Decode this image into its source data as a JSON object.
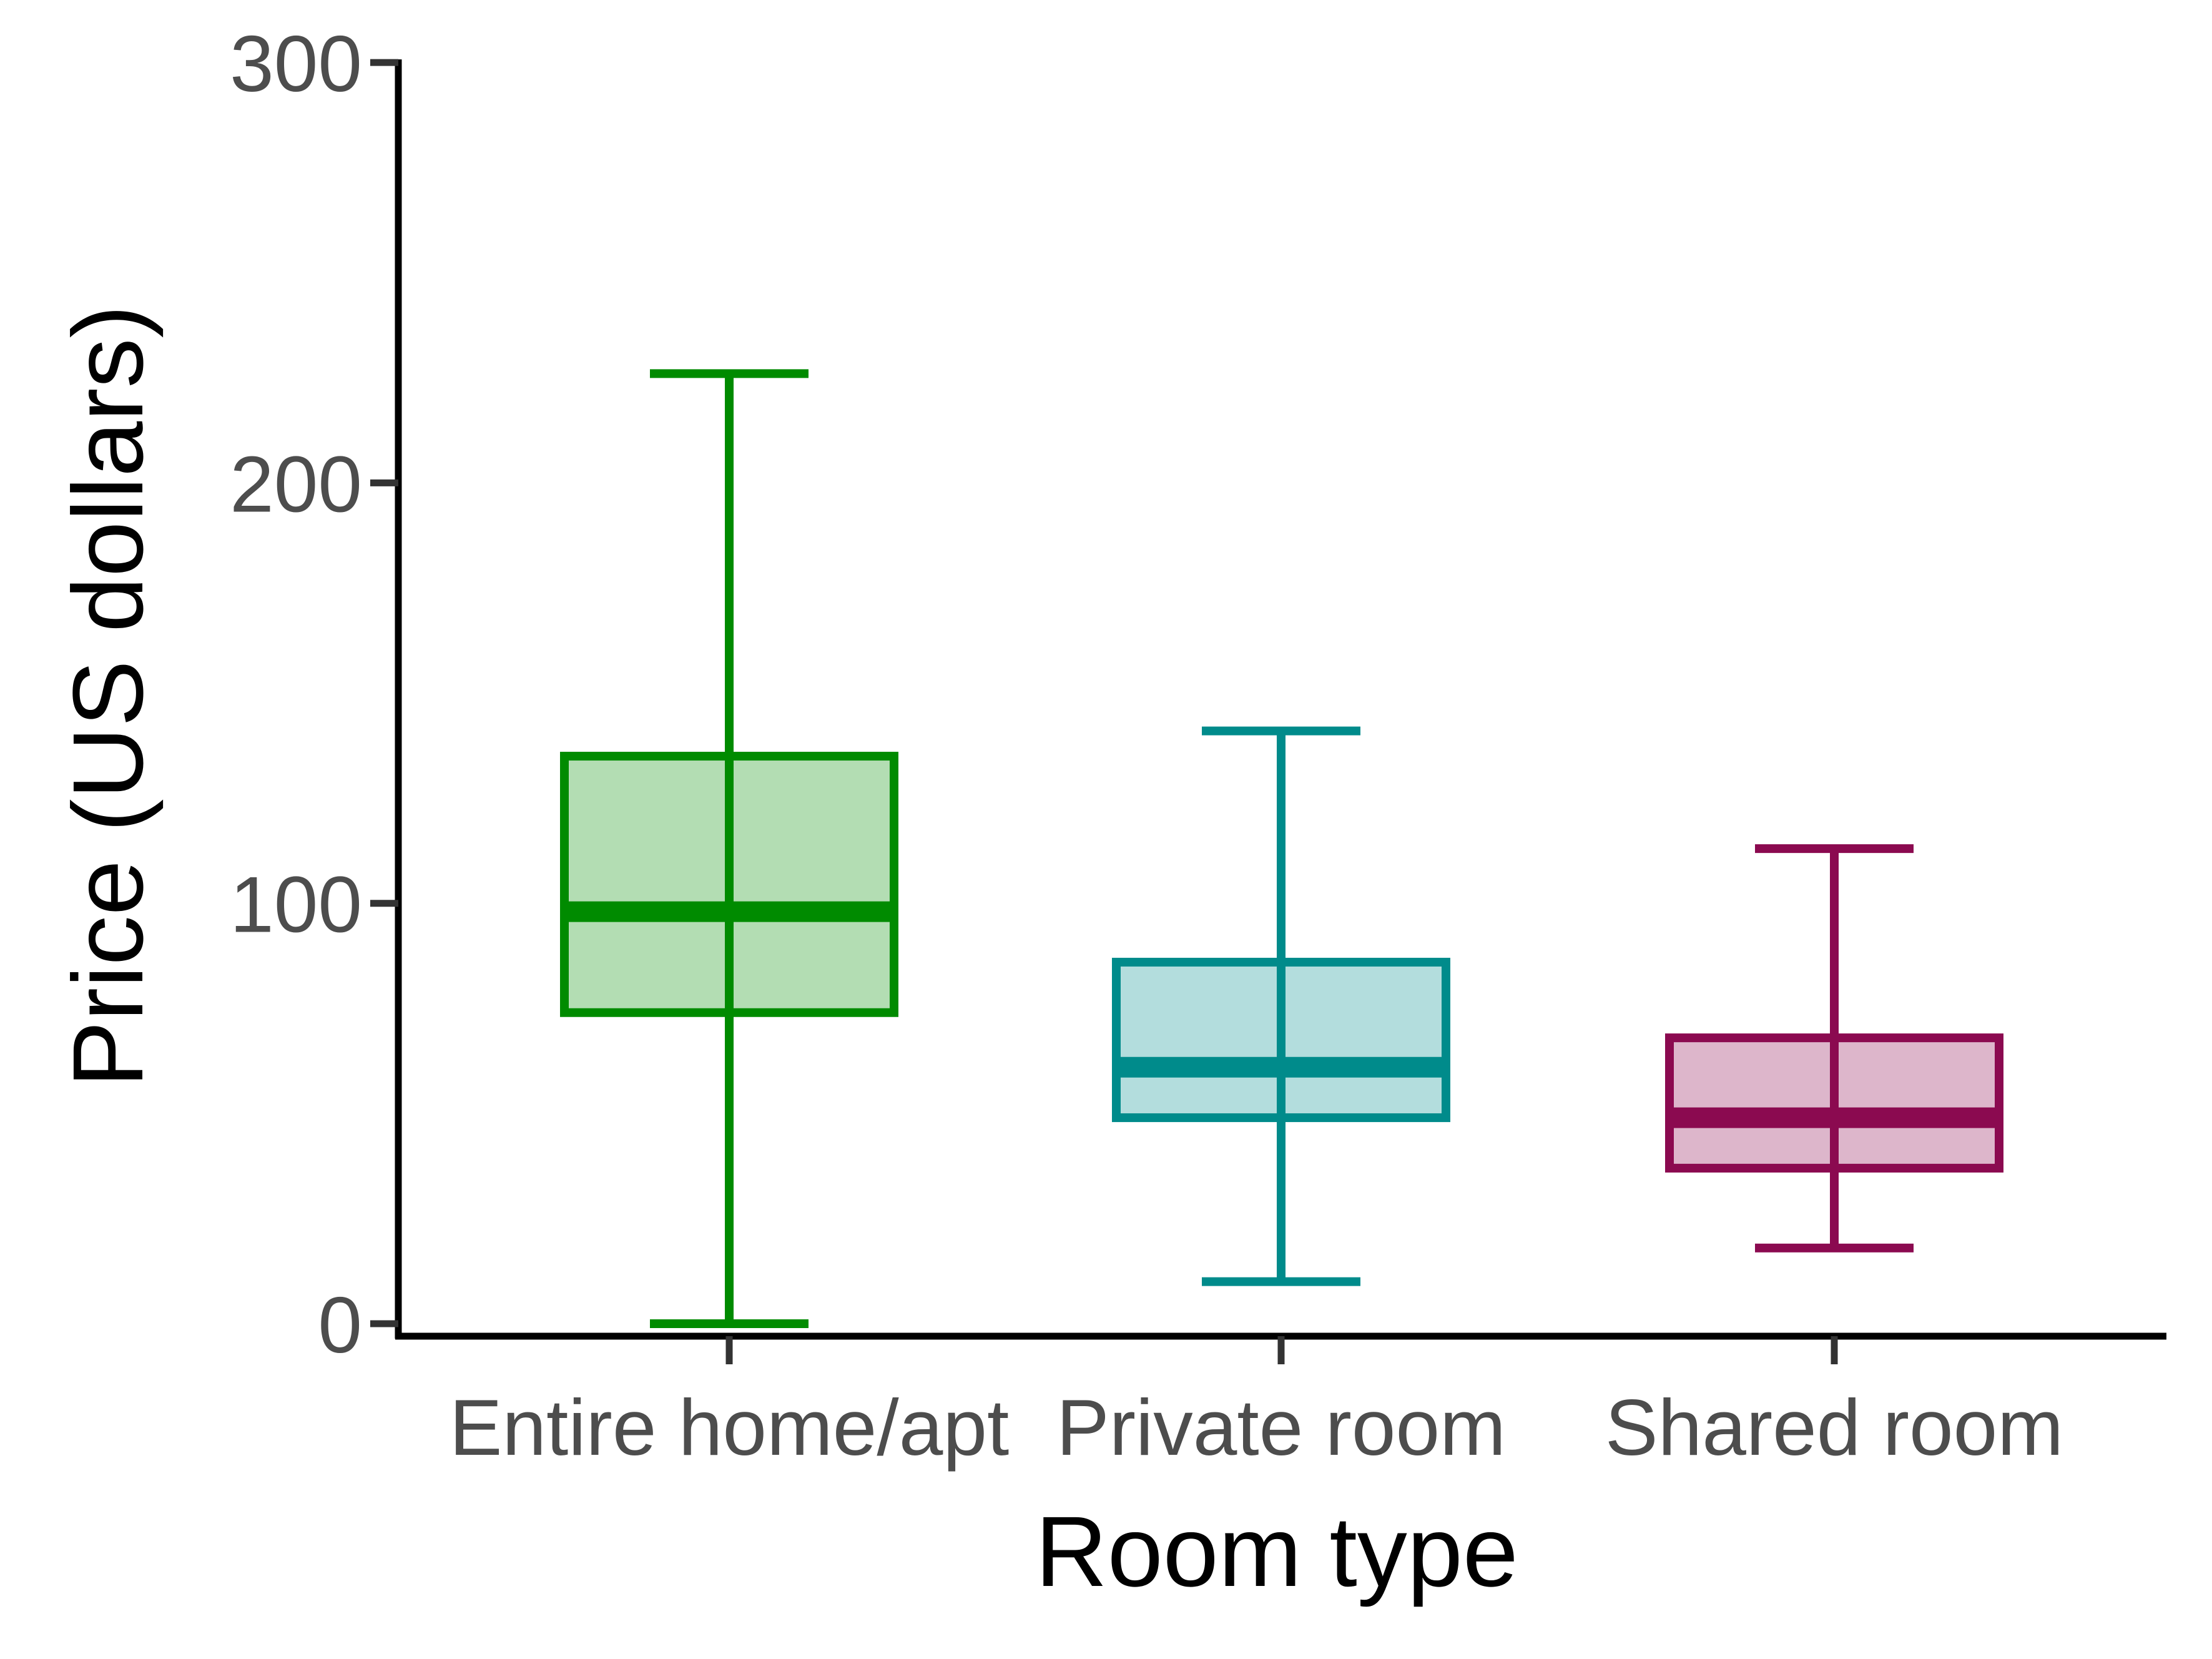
{
  "chart_data": {
    "type": "boxplot",
    "title": "",
    "xlabel": "Room type",
    "ylabel": "Price (US dollars)",
    "ylim": [
      -3,
      300
    ],
    "yticks": [
      0,
      100,
      200,
      300
    ],
    "grid": false,
    "legend": "none",
    "categories": [
      "Entire home/apt",
      "Private room",
      "Shared room"
    ],
    "boxes": [
      {
        "category": "Entire home/apt",
        "whisker_low": 0,
        "q1": 74,
        "median": 98,
        "q3": 135,
        "whisker_high": 226,
        "color": "#008b00",
        "fill": "#b3ddb3"
      },
      {
        "category": "Private room",
        "whisker_low": 10,
        "q1": 49,
        "median": 61,
        "q3": 86,
        "whisker_high": 141,
        "color": "#008b8b",
        "fill": "#b3dddd"
      },
      {
        "category": "Shared room",
        "whisker_low": 18,
        "q1": 37,
        "median": 49,
        "q3": 68,
        "whisker_high": 113,
        "color": "#8b0a50",
        "fill": "#ddb6cb"
      }
    ]
  }
}
